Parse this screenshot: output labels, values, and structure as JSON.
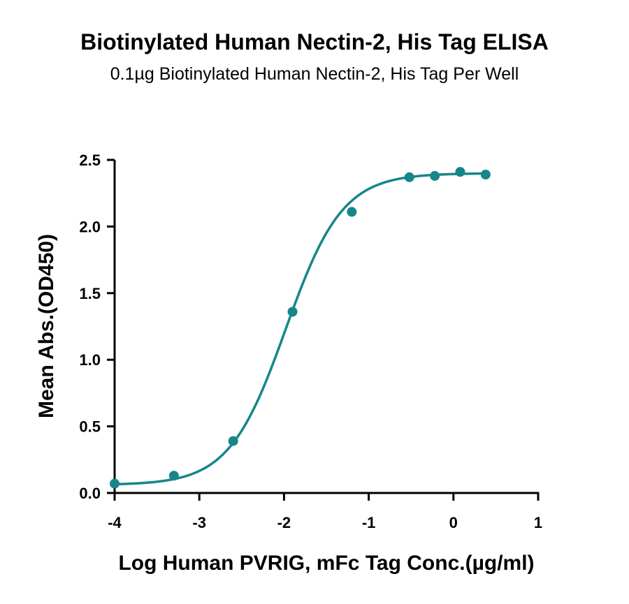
{
  "chart_data": {
    "type": "line",
    "title": "Biotinylated Human Nectin-2, His Tag ELISA",
    "subtitle": "0.1µg Biotinylated Human Nectin-2, His Tag Per Well",
    "xlabel": "Log Human PVRIG, mFc Tag Conc.(µg/ml)",
    "ylabel": "Mean Abs.(OD450)",
    "xlim": [
      -4,
      1
    ],
    "ylim": [
      0,
      2.5
    ],
    "xticks": [
      -4,
      -3,
      -2,
      -1,
      0,
      1
    ],
    "yticks": [
      0,
      0.5,
      1,
      1.5,
      2,
      2.5
    ],
    "xtick_labels": [
      "-4",
      "-3",
      "-2",
      "-1",
      "0",
      "1"
    ],
    "ytick_labels": [
      "0.0",
      "0.5",
      "1.0",
      "1.5",
      "2.0",
      "2.5"
    ],
    "grid": false,
    "series": [
      {
        "color": "#16868a",
        "points": [
          {
            "x": -4.0,
            "y": 0.07
          },
          {
            "x": -3.3,
            "y": 0.13
          },
          {
            "x": -2.6,
            "y": 0.39
          },
          {
            "x": -1.9,
            "y": 1.36
          },
          {
            "x": -1.2,
            "y": 2.11
          },
          {
            "x": -0.52,
            "y": 2.37
          },
          {
            "x": -0.22,
            "y": 2.38
          },
          {
            "x": 0.08,
            "y": 2.41
          },
          {
            "x": 0.38,
            "y": 2.39
          }
        ],
        "fit": {
          "model": "4PL",
          "bottom": 0.06,
          "top": 2.4,
          "logEC50": -1.98,
          "hill": 1.3
        }
      }
    ]
  }
}
